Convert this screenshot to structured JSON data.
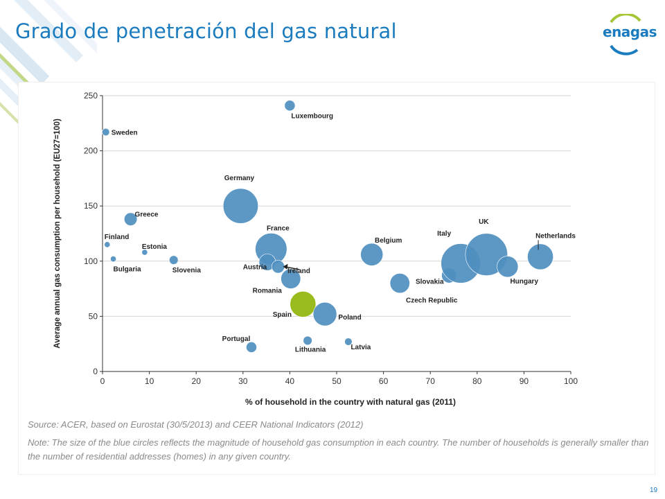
{
  "slide": {
    "title": "Grado de penetración del gas natural",
    "logo_text": "enagas",
    "page_number": "19",
    "accent_color": "#1a7bbf",
    "logo_green": "#a5c637"
  },
  "chart_data": {
    "type": "scatter",
    "title": "",
    "xlabel": "% of household in the country with natural gas (2011)",
    "ylabel": "Average annual gas consumption per household (EU27=100)",
    "xlim": [
      0,
      100
    ],
    "ylim": [
      0,
      250
    ],
    "xticks": [
      0,
      10,
      20,
      30,
      40,
      50,
      60,
      70,
      80,
      90,
      100
    ],
    "yticks": [
      0,
      50,
      100,
      150,
      200,
      250
    ],
    "grid": "horizontal",
    "bubble_color": "#4f8fc0",
    "highlight_color": "#99bb1e",
    "bubble_size_meaning": "magnitude of household gas consumption",
    "points": [
      {
        "country": "Luxembourg",
        "x": 40,
        "y": 241,
        "size": 1
      },
      {
        "country": "Sweden",
        "x": 0.7,
        "y": 217,
        "size": 0.5
      },
      {
        "country": "Germany",
        "x": 29.5,
        "y": 150,
        "size": 11
      },
      {
        "country": "Greece",
        "x": 6,
        "y": 138,
        "size": 1.5
      },
      {
        "country": "Finland",
        "x": 1,
        "y": 115,
        "size": 0.3
      },
      {
        "country": "Estonia",
        "x": 9,
        "y": 108,
        "size": 0.3
      },
      {
        "country": "Bulgaria",
        "x": 2.3,
        "y": 102,
        "size": 0.3
      },
      {
        "country": "Slovenia",
        "x": 15.2,
        "y": 101,
        "size": 0.7
      },
      {
        "country": "France",
        "x": 36,
        "y": 111,
        "size": 9
      },
      {
        "country": "Austria",
        "x": 35.2,
        "y": 99,
        "size": 2.5
      },
      {
        "country": "Ireland",
        "x": 37.5,
        "y": 95,
        "size": 1.5
      },
      {
        "country": "Romania",
        "x": 40.2,
        "y": 84,
        "size": 3.5
      },
      {
        "country": "Spain",
        "x": 42.8,
        "y": 61,
        "size": 6
      },
      {
        "country": "Poland",
        "x": 47.5,
        "y": 52,
        "size": 5
      },
      {
        "country": "Portugal",
        "x": 31.8,
        "y": 22,
        "size": 1
      },
      {
        "country": "Lithuania",
        "x": 43.8,
        "y": 28,
        "size": 0.7
      },
      {
        "country": "Latvia",
        "x": 52.5,
        "y": 27,
        "size": 0.5
      },
      {
        "country": "Belgium",
        "x": 57.5,
        "y": 106,
        "size": 4.5
      },
      {
        "country": "Czech Republic",
        "x": 63.5,
        "y": 80,
        "size": 3.5
      },
      {
        "country": "Slovakia",
        "x": 74,
        "y": 87,
        "size": 2
      },
      {
        "country": "Italy",
        "x": 76.5,
        "y": 98,
        "size": 14
      },
      {
        "country": "UK",
        "x": 82,
        "y": 106,
        "size": 16
      },
      {
        "country": "Hungary",
        "x": 86.5,
        "y": 95,
        "size": 4
      },
      {
        "country": "Netherlands",
        "x": 93.5,
        "y": 104,
        "size": 6
      }
    ],
    "highlighted": [
      "Spain"
    ],
    "annotations": [
      {
        "text": "Ireland",
        "type": "arrow-label"
      }
    ]
  },
  "notes": {
    "source": "Source: ACER, based on Eurostat (30/5/2013) and CEER National Indicators (2012)",
    "note": "Note: The size of the blue circles reflects the magnitude of household gas consumption in each country. The number of households is generally smaller than the number of residential addresses (homes) in any given country."
  }
}
